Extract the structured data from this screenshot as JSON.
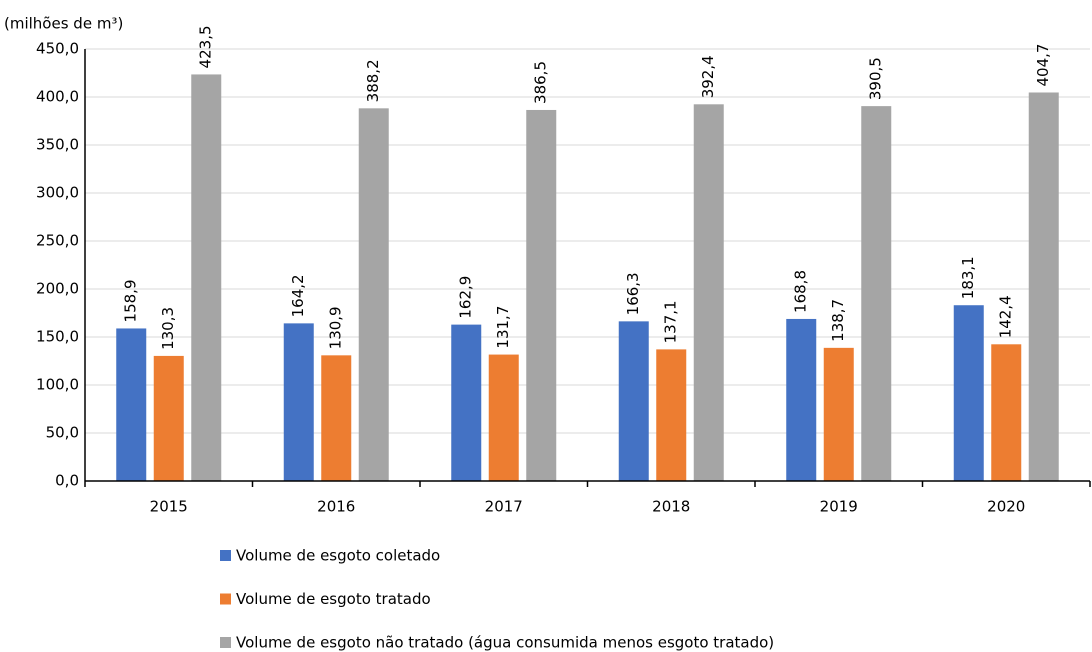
{
  "chart_data": {
    "type": "bar",
    "axis_label": "(milhões de m³)",
    "categories": [
      "2015",
      "2016",
      "2017",
      "2018",
      "2019",
      "2020"
    ],
    "series": [
      {
        "name": "Volume de esgoto coletado",
        "color": "#4472c4",
        "values": [
          158.9,
          164.2,
          162.9,
          166.3,
          168.8,
          183.1
        ],
        "value_labels": [
          "158,9",
          "164,2",
          "162,9",
          "166,3",
          "168,8",
          "183,1"
        ]
      },
      {
        "name": "Volume de esgoto tratado",
        "color": "#ed7d31",
        "values": [
          130.3,
          130.9,
          131.7,
          137.1,
          138.7,
          142.4
        ],
        "value_labels": [
          "130,3",
          "130,9",
          "131,7",
          "137,1",
          "138,7",
          "142,4"
        ]
      },
      {
        "name": "Volume de esgoto não tratado (água consumida menos esgoto tratado)",
        "color": "#a5a5a5",
        "values": [
          423.5,
          388.2,
          386.5,
          392.4,
          390.5,
          404.7
        ],
        "value_labels": [
          "423,5",
          "388,2",
          "386,5",
          "392,4",
          "390,5",
          "404,7"
        ]
      }
    ],
    "ylim": [
      0,
      450
    ],
    "yticks": [
      {
        "value": 0,
        "label": "0,0"
      },
      {
        "value": 50,
        "label": "50,0"
      },
      {
        "value": 100,
        "label": "100,0"
      },
      {
        "value": 150,
        "label": "150,0"
      },
      {
        "value": 200,
        "label": "200,0"
      },
      {
        "value": 250,
        "label": "250,0"
      },
      {
        "value": 300,
        "label": "300,0"
      },
      {
        "value": 350,
        "label": "350,0"
      },
      {
        "value": 400,
        "label": "400,0"
      },
      {
        "value": 450,
        "label": "450,0"
      }
    ],
    "grid": true,
    "legend": "bottom"
  }
}
